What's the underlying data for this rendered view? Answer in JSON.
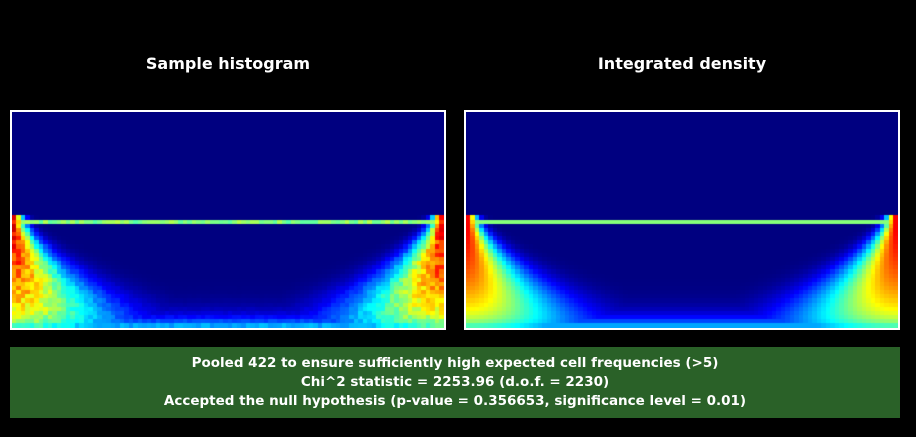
{
  "panels": [
    {
      "title": "Sample histogram"
    },
    {
      "title": "Integrated density"
    }
  ],
  "status": {
    "line1": "Pooled 422 to ensure sufficiently high expected cell frequencies (>5)",
    "line2": "Chi^2 statistic = 2253.96 (d.o.f. = 2230)",
    "line3": "Accepted the null hypothesis (p-value = 0.356653, significance level = 0.01)",
    "background_color": "#2a6128"
  },
  "colormap": {
    "name": "jet",
    "low_color": "#0000ff",
    "high_color": "#ff0000"
  }
}
